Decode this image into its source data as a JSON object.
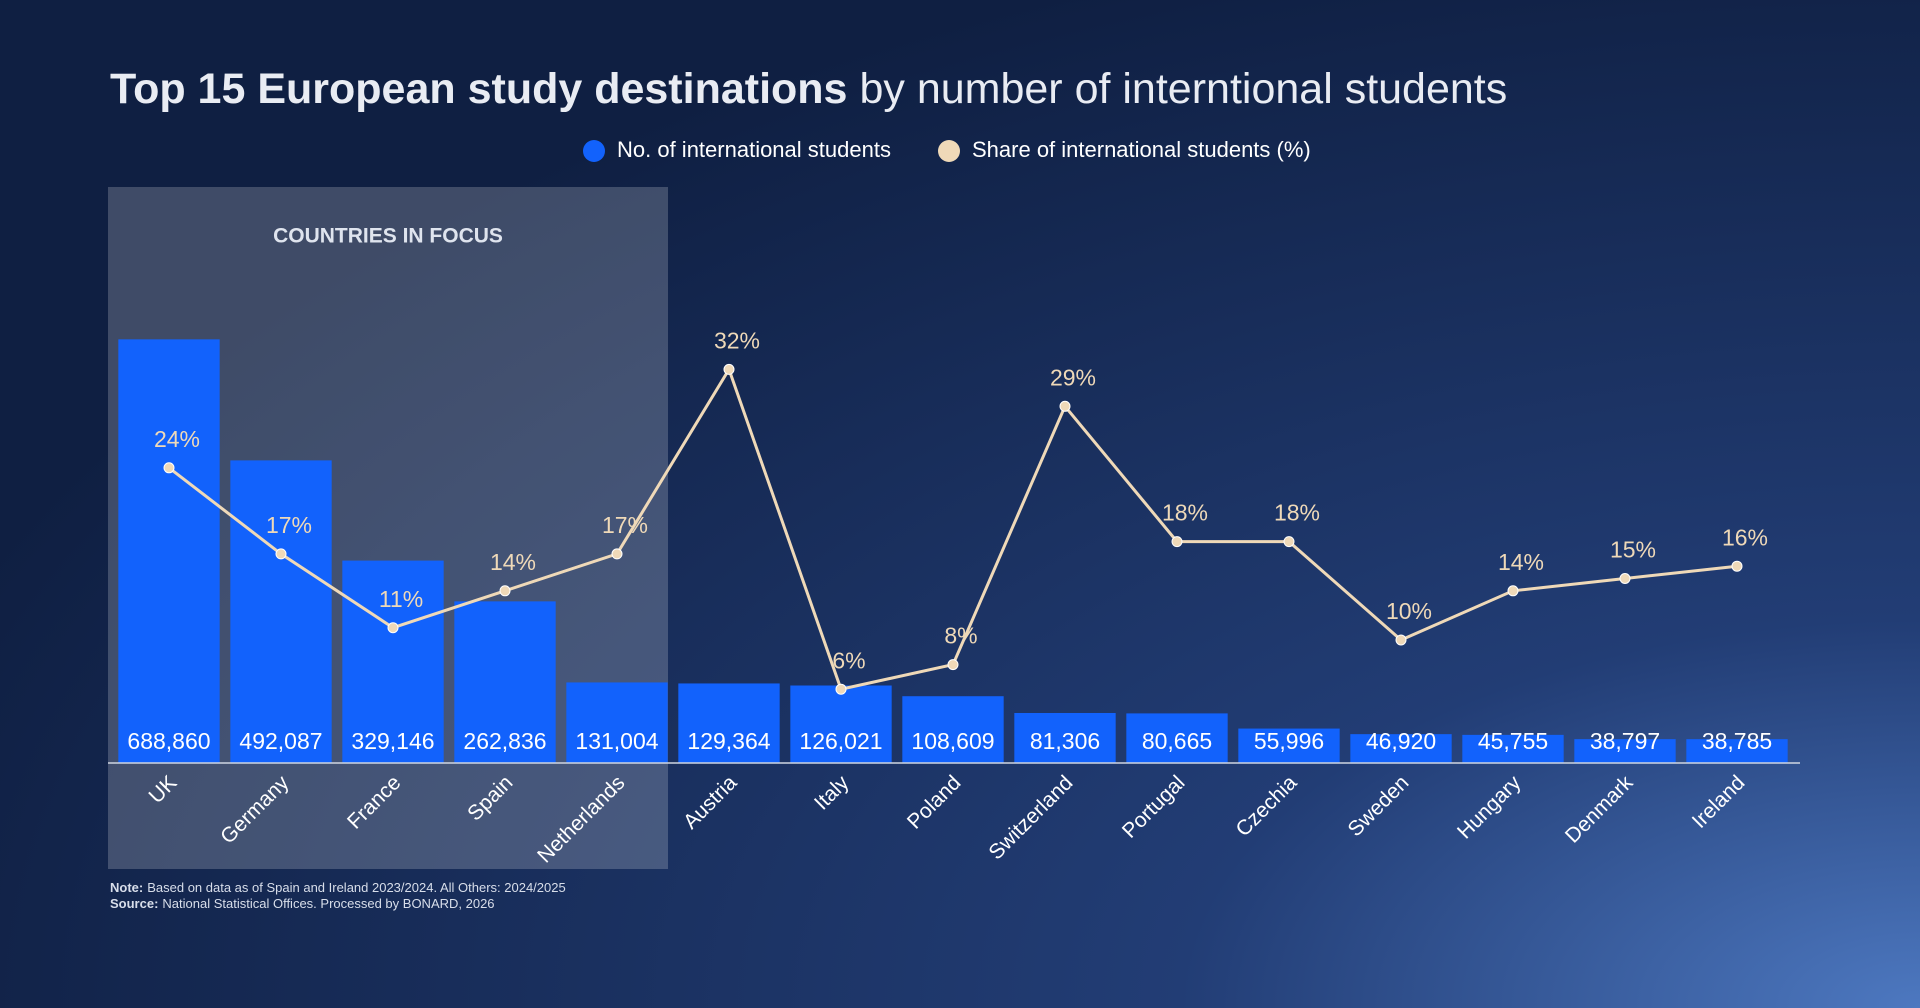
{
  "chart_data": {
    "type": "bar",
    "title": {
      "bold": "Top 15 European study destinations",
      "rest": "by number of interntional students"
    },
    "highlight": {
      "label": "COUNTRIES IN FOCUS",
      "range": [
        0,
        4
      ]
    },
    "categories": [
      "UK",
      "Germany",
      "France",
      "Spain",
      "Netherlands",
      "Austria",
      "Italy",
      "Poland",
      "Switzerland",
      "Portugal",
      "Czechia",
      "Sweden",
      "Hungary",
      "Denmark",
      "Ireland"
    ],
    "series": [
      {
        "name": "No. of international students",
        "type": "bar",
        "color": "#1262fc",
        "values": [
          688860,
          492087,
          329146,
          262836,
          131004,
          129364,
          126021,
          108609,
          81306,
          80665,
          55996,
          46920,
          45755,
          38797,
          38785
        ],
        "value_labels": [
          "688,860",
          "492,087",
          "329,146",
          "262,836",
          "131,004",
          "129,364",
          "126,021",
          "108,609",
          "81,306",
          "80,665",
          "55,996",
          "46,920",
          "45,755",
          "38,797",
          "38,785"
        ]
      },
      {
        "name": "Share of international students (%)",
        "type": "line",
        "axis": "y2",
        "color": "#efd9b8",
        "values": [
          24,
          17,
          11,
          14,
          17,
          32,
          6,
          8,
          29,
          18,
          18,
          10,
          14,
          15,
          16
        ],
        "value_labels": [
          "24%",
          "17%",
          "11%",
          "14%",
          "17%",
          "32%",
          "6%",
          "8%",
          "29%",
          "18%",
          "18%",
          "10%",
          "14%",
          "15%",
          "16%"
        ]
      }
    ],
    "ylim": [
      0,
      800000
    ],
    "y2lim": [
      0,
      40
    ],
    "notes": [
      {
        "label": "Note:",
        "text": "Based on data as of Spain and Ireland 2023/2024. All Others: 2024/2025"
      },
      {
        "label": "Source:",
        "text": "National Statistical Offices. Processed by BONARD, 2026"
      }
    ]
  }
}
